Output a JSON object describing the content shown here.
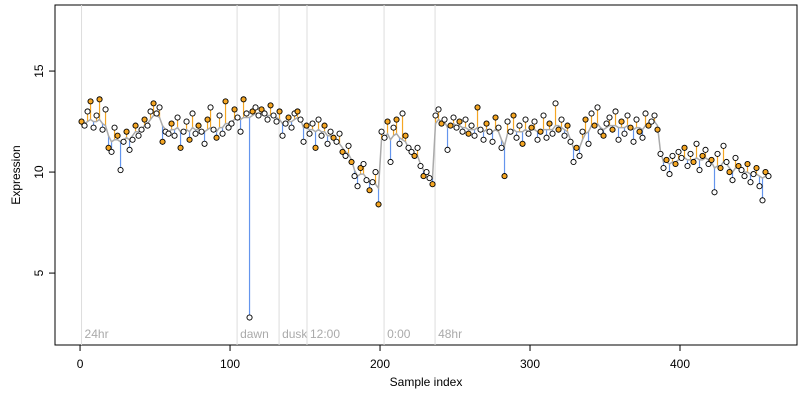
{
  "chart_data": {
    "type": "scatter",
    "xlabel": "Sample index",
    "ylabel": "Expression",
    "xlim": [
      -16.7,
      478
    ],
    "xticks": [
      0,
      100,
      200,
      300,
      400
    ],
    "ylim": [
      1.44,
      18.27
    ],
    "yticks": [
      5,
      10,
      15
    ],
    "point_color": "#000000",
    "fitted_color": "#aaaaaa",
    "above_color": "#f5a623",
    "below_color": "#6495ed",
    "event_color": "#dddddd",
    "events": [
      {
        "x": 1,
        "label": "24hr"
      },
      {
        "x": 104.7,
        "label": "dawn"
      },
      {
        "x": 132.7,
        "label": "dusk"
      },
      {
        "x": 151.3,
        "label": "12:00"
      },
      {
        "x": 202.7,
        "label": "0:00"
      },
      {
        "x": 236.7,
        "label": "48hr"
      }
    ],
    "x": [
      1,
      3,
      5,
      7,
      9,
      11,
      13,
      15,
      17,
      19,
      21,
      23,
      25,
      27,
      29,
      31,
      33,
      35,
      37,
      39,
      41,
      43,
      45,
      47,
      49,
      51,
      53,
      55,
      57,
      59,
      61,
      63,
      65,
      67,
      69,
      71,
      73,
      75,
      77,
      79,
      81,
      83,
      85,
      87,
      89,
      91,
      93,
      95,
      97,
      99,
      101,
      103,
      105,
      107,
      109,
      111,
      113,
      115,
      117,
      119,
      121,
      123,
      125,
      127,
      129,
      131,
      133,
      135,
      137,
      139,
      141,
      143,
      145,
      147,
      149,
      151,
      153,
      155,
      157,
      159,
      161,
      163,
      165,
      167,
      169,
      171,
      173,
      175,
      177,
      179,
      181,
      183,
      185,
      187,
      189,
      191,
      193,
      195,
      197,
      199,
      201,
      203,
      205,
      207,
      209,
      211,
      213,
      215,
      217,
      219,
      221,
      223,
      225,
      227,
      229,
      231,
      233,
      235,
      237,
      239,
      241,
      243,
      245,
      247,
      249,
      251,
      253,
      255,
      257,
      259,
      261,
      263,
      265,
      267,
      269,
      271,
      273,
      275,
      277,
      279,
      281,
      283,
      285,
      287,
      289,
      291,
      293,
      295,
      297,
      299,
      301,
      303,
      305,
      307,
      309,
      311,
      313,
      315,
      317,
      319,
      321,
      323,
      325,
      327,
      329,
      331,
      333,
      335,
      337,
      339,
      341,
      343,
      345,
      347,
      349,
      351,
      353,
      355,
      357,
      359,
      361,
      363,
      365,
      367,
      369,
      371,
      373,
      375,
      377,
      379,
      381,
      383,
      385,
      387,
      389,
      391,
      393,
      395,
      397,
      399,
      401,
      403,
      405,
      407,
      409,
      411,
      413,
      415,
      417,
      419,
      421,
      423,
      425,
      427,
      429,
      431,
      433,
      435,
      437,
      439,
      441,
      443,
      445,
      447,
      449,
      451,
      453,
      455,
      457,
      459
    ],
    "values": [
      12.5,
      12.3,
      13.0,
      13.5,
      12.2,
      12.8,
      13.6,
      12.1,
      13.1,
      11.2,
      11.0,
      12.2,
      11.8,
      10.1,
      11.5,
      12.0,
      11.1,
      11.6,
      12.3,
      11.8,
      12.1,
      12.6,
      12.3,
      13.0,
      13.4,
      12.9,
      13.2,
      11.5,
      12.0,
      11.9,
      12.4,
      11.8,
      12.7,
      11.2,
      12.0,
      12.5,
      11.6,
      12.9,
      11.9,
      12.3,
      12.0,
      11.4,
      12.6,
      13.2,
      12.1,
      11.7,
      12.8,
      11.9,
      13.5,
      12.2,
      12.4,
      13.1,
      12.7,
      12.0,
      13.6,
      12.9,
      2.8,
      13.0,
      13.2,
      12.8,
      13.1,
      12.9,
      12.6,
      13.3,
      12.8,
      12.5,
      13.0,
      11.8,
      12.4,
      12.7,
      12.2,
      12.9,
      13.0,
      12.6,
      11.5,
      12.3,
      11.9,
      12.4,
      11.2,
      12.6,
      11.8,
      12.3,
      11.4,
      12.0,
      11.7,
      11.5,
      11.9,
      11.0,
      10.8,
      11.3,
      10.5,
      9.8,
      9.3,
      10.2,
      10.4,
      9.6,
      9.1,
      9.5,
      10.0,
      8.4,
      12.0,
      11.7,
      12.5,
      10.5,
      12.2,
      12.6,
      11.4,
      12.9,
      11.8,
      11.2,
      11.0,
      10.8,
      11.2,
      10.3,
      9.8,
      10.0,
      9.7,
      9.4,
      12.8,
      13.1,
      12.4,
      12.6,
      11.1,
      12.3,
      12.7,
      12.2,
      12.5,
      12.0,
      12.6,
      11.9,
      12.3,
      11.8,
      13.2,
      12.1,
      11.6,
      12.4,
      12.0,
      11.5,
      12.7,
      12.2,
      11.2,
      9.8,
      12.5,
      12.0,
      12.8,
      11.7,
      12.3,
      11.4,
      12.6,
      11.9,
      12.2,
      12.5,
      11.6,
      12.0,
      12.8,
      11.7,
      12.4,
      11.9,
      13.4,
      12.1,
      12.6,
      11.8,
      12.3,
      11.5,
      10.5,
      11.2,
      10.8,
      12.0,
      12.6,
      11.4,
      12.9,
      12.3,
      13.2,
      12.0,
      11.8,
      12.4,
      12.7,
      12.1,
      13.0,
      11.6,
      12.5,
      11.9,
      12.8,
      12.2,
      11.5,
      12.6,
      12.0,
      11.7,
      12.9,
      12.3,
      12.5,
      12.8,
      12.1,
      10.9,
      10.2,
      10.6,
      9.9,
      10.8,
      10.4,
      11.0,
      10.7,
      11.2,
      10.3,
      10.9,
      10.5,
      11.4,
      10.1,
      10.8,
      11.1,
      10.4,
      10.6,
      9.0,
      10.9,
      10.2,
      11.3,
      10.5,
      10.0,
      9.6,
      10.7,
      10.3,
      10.1,
      9.8,
      10.4,
      9.5,
      9.9,
      10.2,
      9.3,
      8.6,
      10.0,
      9.8
    ],
    "fitted": [
      12.3,
      12.4,
      12.5,
      12.6,
      12.5,
      12.5,
      12.6,
      12.4,
      12.3,
      11.8,
      11.5,
      11.6,
      11.6,
      11.5,
      11.6,
      11.7,
      11.6,
      11.8,
      12.0,
      12.0,
      12.1,
      12.3,
      12.4,
      12.6,
      12.8,
      12.8,
      12.7,
      12.3,
      12.1,
      12.0,
      12.1,
      12.1,
      12.2,
      12.0,
      12.0,
      12.1,
      12.0,
      12.2,
      12.1,
      12.1,
      12.0,
      12.0,
      12.1,
      12.2,
      12.1,
      12.0,
      12.2,
      12.2,
      12.4,
      12.4,
      12.5,
      12.6,
      12.6,
      12.6,
      12.7,
      12.7,
      12.7,
      12.8,
      12.9,
      12.9,
      12.9,
      12.9,
      12.8,
      12.8,
      12.8,
      12.7,
      12.6,
      12.4,
      12.4,
      12.5,
      12.5,
      12.6,
      12.7,
      12.6,
      12.2,
      12.2,
      12.1,
      12.1,
      12.0,
      12.1,
      12.0,
      12.0,
      11.8,
      11.8,
      11.6,
      11.5,
      11.4,
      11.2,
      11.0,
      10.9,
      10.6,
      10.1,
      9.8,
      9.9,
      9.9,
      9.7,
      9.5,
      9.5,
      9.4,
      9.2,
      11.6,
      11.7,
      11.9,
      11.6,
      11.8,
      11.9,
      11.7,
      11.6,
      11.5,
      11.2,
      11.0,
      10.9,
      10.8,
      10.4,
      10.1,
      10.0,
      9.8,
      9.7,
      12.4,
      12.6,
      12.5,
      12.5,
      12.2,
      12.3,
      12.4,
      12.3,
      12.3,
      12.2,
      12.2,
      12.1,
      12.1,
      12.1,
      12.2,
      12.1,
      12.0,
      12.1,
      12.1,
      12.0,
      12.1,
      12.0,
      11.6,
      11.3,
      11.9,
      12.0,
      12.1,
      12.0,
      12.0,
      12.0,
      12.1,
      12.0,
      12.1,
      12.1,
      12.0,
      12.0,
      12.1,
      12.1,
      12.1,
      12.1,
      12.3,
      12.3,
      12.2,
      12.1,
      12.0,
      11.6,
      11.2,
      11.1,
      11.2,
      11.6,
      11.9,
      12.0,
      12.3,
      12.3,
      12.4,
      12.2,
      12.1,
      12.2,
      12.3,
      12.3,
      12.3,
      12.2,
      12.2,
      12.2,
      12.3,
      12.2,
      12.1,
      12.2,
      12.2,
      12.1,
      12.3,
      12.4,
      12.5,
      12.5,
      12.3,
      11.0,
      10.5,
      10.5,
      10.4,
      10.5,
      10.5,
      10.6,
      10.7,
      10.7,
      10.6,
      10.6,
      10.6,
      10.7,
      10.6,
      10.6,
      10.7,
      10.6,
      10.5,
      10.2,
      10.3,
      10.3,
      10.5,
      10.4,
      10.2,
      10.0,
      10.2,
      10.2,
      10.1,
      10.0,
      10.0,
      9.9,
      9.9,
      9.9,
      9.8,
      9.7,
      9.8,
      9.9
    ]
  }
}
